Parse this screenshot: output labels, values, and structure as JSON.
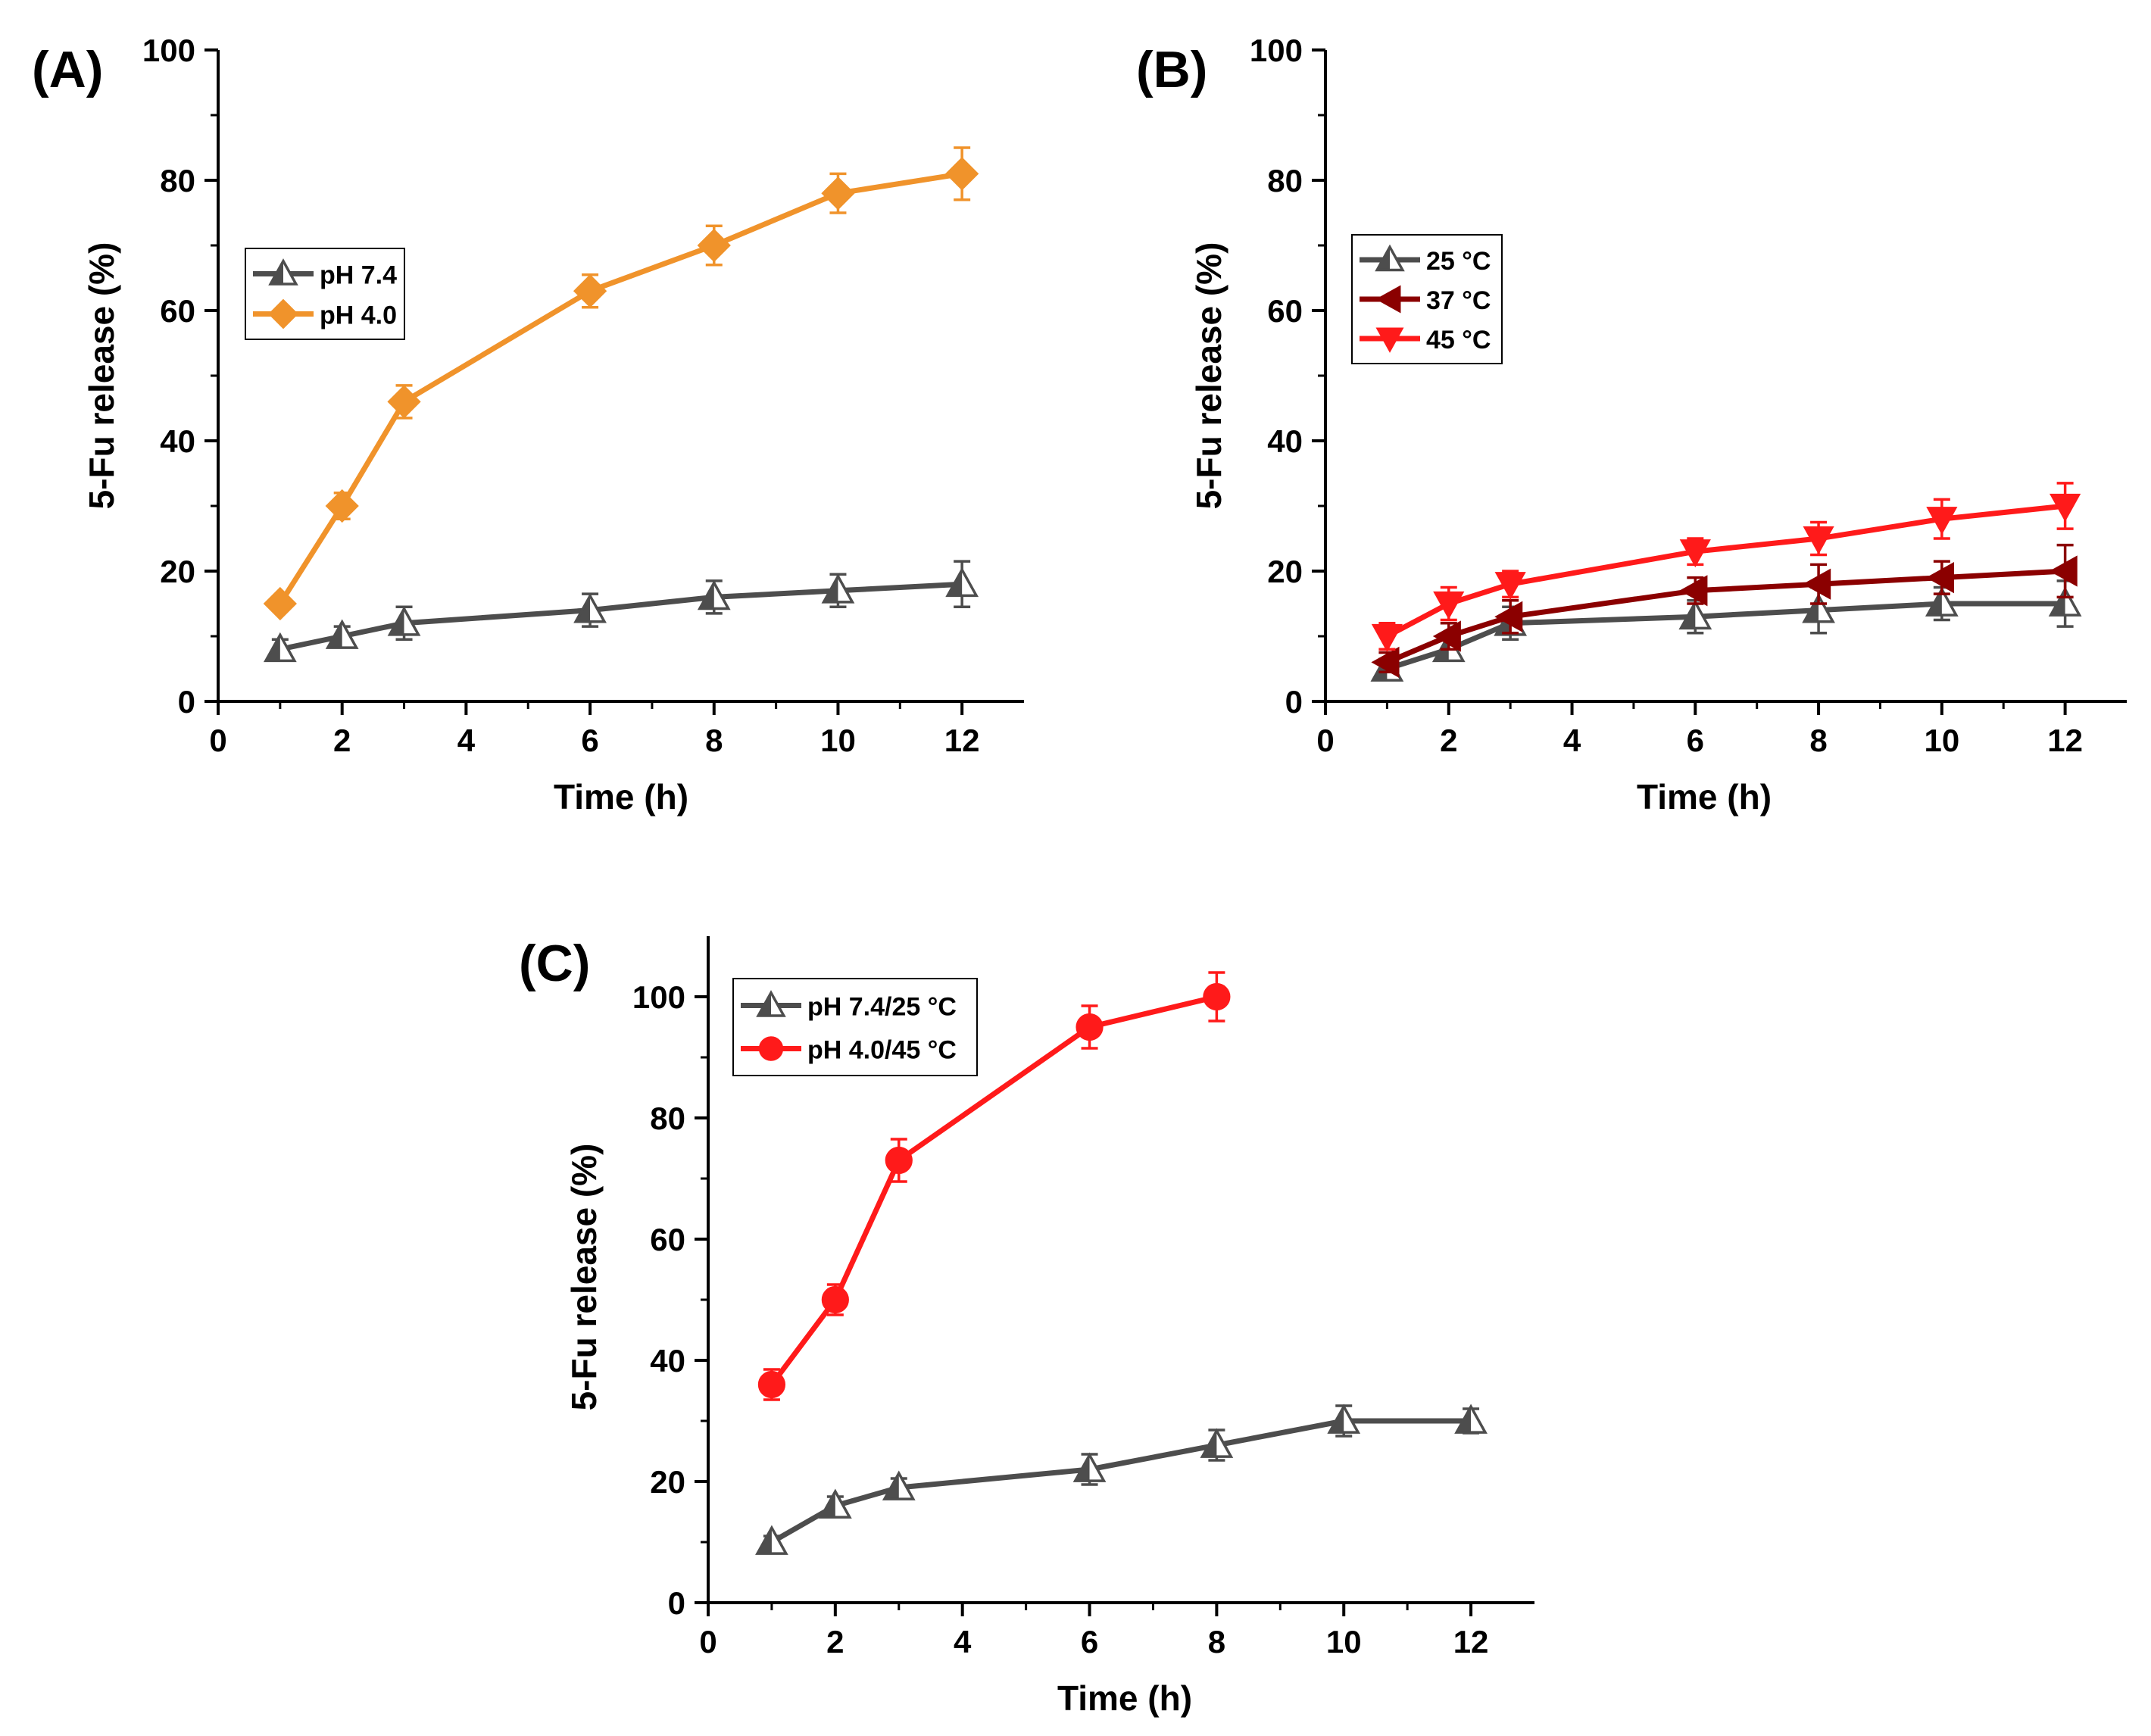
{
  "chart_data": [
    {
      "id": "A",
      "type": "line",
      "panel_label": "(A)",
      "xlabel": "Time (h)",
      "ylabel": "5-Fu release (%)",
      "xlim": [
        0,
        13
      ],
      "ylim": [
        0,
        100
      ],
      "x_ticks": [
        0,
        2,
        4,
        6,
        8,
        10,
        12
      ],
      "y_ticks": [
        0,
        20,
        40,
        60,
        80,
        100
      ],
      "legend_position": "upper-left",
      "series": [
        {
          "name": "pH 7.4",
          "color": "#4d4d4d",
          "marker": "triangle-up-half",
          "x": [
            1,
            2,
            3,
            6,
            8,
            10,
            12
          ],
          "values": [
            8,
            10,
            12,
            14,
            16,
            17,
            18
          ],
          "errors": [
            1.5,
            1.5,
            2.5,
            2.5,
            2.5,
            2.5,
            3.5
          ]
        },
        {
          "name": "pH 4.0",
          "color": "#f0932b",
          "marker": "diamond",
          "x": [
            1,
            2,
            3,
            6,
            8,
            10,
            12
          ],
          "values": [
            15,
            30,
            46,
            63,
            70,
            78,
            81
          ],
          "errors": [
            1,
            2,
            2.5,
            2.5,
            3,
            3,
            4
          ]
        }
      ]
    },
    {
      "id": "B",
      "type": "line",
      "panel_label": "(B)",
      "xlabel": "Time (h)",
      "ylabel": "5-Fu release (%)",
      "xlim": [
        0,
        13
      ],
      "ylim": [
        0,
        100
      ],
      "x_ticks": [
        0,
        2,
        4,
        6,
        8,
        10,
        12
      ],
      "y_ticks": [
        0,
        20,
        40,
        60,
        80,
        100
      ],
      "legend_position": "upper-left",
      "series": [
        {
          "name": "25 °C",
          "color": "#4d4d4d",
          "marker": "triangle-up-half",
          "x": [
            1,
            2,
            3,
            6,
            8,
            10,
            12
          ],
          "values": [
            5,
            8,
            12,
            13,
            14,
            15,
            15
          ],
          "errors": [
            1.5,
            1.5,
            2.5,
            2.5,
            3.5,
            2.5,
            3.5
          ]
        },
        {
          "name": "37 °C",
          "color": "#8b0000",
          "marker": "triangle-left",
          "x": [
            1,
            2,
            3,
            6,
            8,
            10,
            12
          ],
          "values": [
            6,
            10,
            13,
            17,
            18,
            19,
            20
          ],
          "errors": [
            1.5,
            2,
            2.5,
            2,
            3,
            2.5,
            4
          ]
        },
        {
          "name": "45 °C",
          "color": "#ff1a1a",
          "marker": "triangle-down",
          "x": [
            1,
            2,
            3,
            6,
            8,
            10,
            12
          ],
          "values": [
            10,
            15,
            18,
            23,
            25,
            28,
            30
          ],
          "errors": [
            2,
            2.5,
            2,
            2,
            2.5,
            3,
            3.5
          ]
        }
      ]
    },
    {
      "id": "C",
      "type": "line",
      "panel_label": "(C)",
      "xlabel": "Time (h)",
      "ylabel": "5-Fu release (%)",
      "xlim": [
        0,
        13
      ],
      "ylim": [
        0,
        110
      ],
      "x_ticks": [
        0,
        2,
        4,
        6,
        8,
        10,
        12
      ],
      "y_ticks": [
        0,
        20,
        40,
        60,
        80,
        100
      ],
      "legend_position": "upper-left",
      "series": [
        {
          "name": "pH 7.4/25 °C",
          "color": "#4d4d4d",
          "marker": "triangle-up-half",
          "x": [
            1,
            2,
            3,
            6,
            8,
            10,
            12
          ],
          "values": [
            10,
            16,
            19,
            22,
            26,
            30,
            30
          ],
          "errors": [
            1,
            1.5,
            1.5,
            2.5,
            2.5,
            2.5,
            2
          ]
        },
        {
          "name": "pH 4.0/45 °C",
          "color": "#ff1a1a",
          "marker": "circle",
          "x": [
            1,
            2,
            3,
            6,
            8
          ],
          "values": [
            36,
            50,
            73,
            95,
            100
          ],
          "errors": [
            2.5,
            2.5,
            3.5,
            3.5,
            4
          ]
        }
      ]
    }
  ]
}
